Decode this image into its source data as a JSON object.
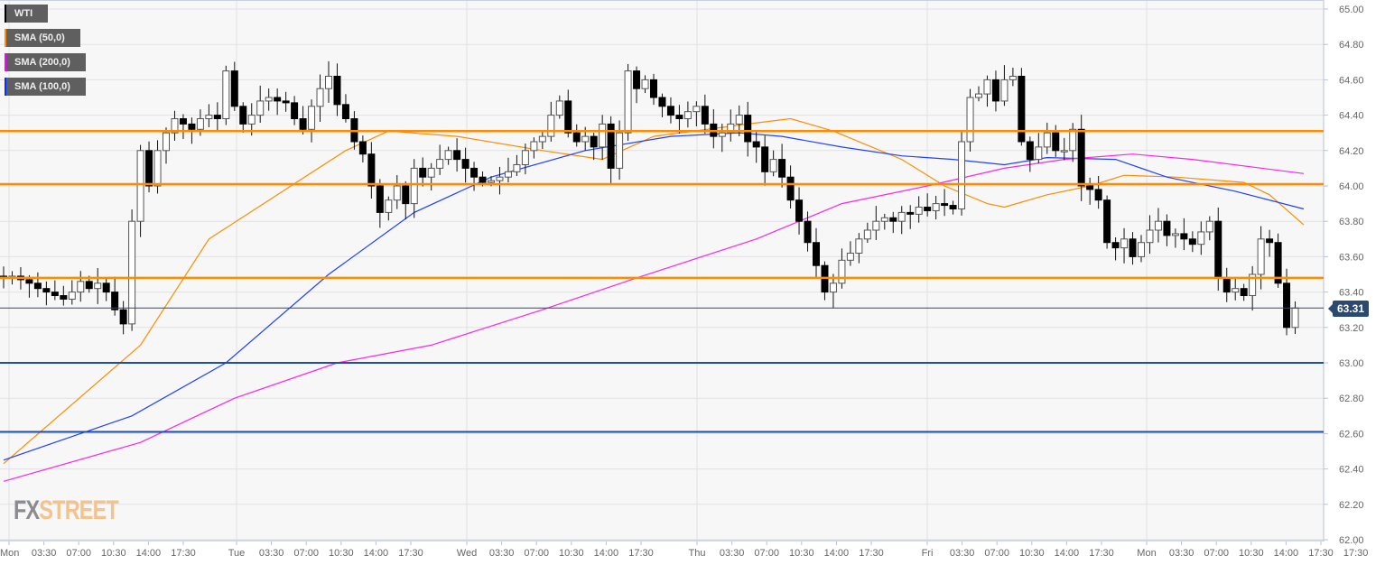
{
  "legend": [
    {
      "label": "WTI",
      "color": "#000000"
    },
    {
      "label": "SMA (50,0)",
      "color": "#ff8c00"
    },
    {
      "label": "SMA (200,0)",
      "color": "#ff00ff"
    },
    {
      "label": "SMA (100,0)",
      "color": "#0033ff"
    }
  ],
  "logo": {
    "fx": "FX",
    "street": "STREET"
  },
  "current_price_label": "63.31",
  "chart_data": {
    "type": "candlestick",
    "symbol": "WTI",
    "ylim": [
      62.0,
      65.0
    ],
    "y_ticks": [
      "65.00",
      "64.80",
      "64.60",
      "64.40",
      "64.20",
      "64.00",
      "63.80",
      "63.60",
      "63.40",
      "63.20",
      "63.00",
      "62.80",
      "62.60",
      "62.40",
      "62.20",
      "62.00"
    ],
    "x_tick_labels": [
      [
        "Mon",
        "03:30",
        "07:00",
        "10:30",
        "14:00",
        "17:30"
      ],
      [
        "Tue",
        "03:30",
        "07:00",
        "10:30",
        "14:00",
        "17:30"
      ],
      [
        "Wed",
        "03:30",
        "07:00",
        "10:30",
        "14:00",
        "17:30"
      ],
      [
        "Thu",
        "03:30",
        "07:00",
        "10:30",
        "14:00",
        "17:30"
      ],
      [
        "Fri",
        "03:30",
        "07:00",
        "10:30",
        "14:00",
        "17:30"
      ],
      [
        "Mon",
        "03:30",
        "07:00",
        "10:30",
        "14:00",
        "17:30"
      ]
    ],
    "grid": true,
    "closes": [
      63.48,
      63.49,
      63.47,
      63.45,
      63.42,
      63.4,
      63.38,
      63.36,
      63.4,
      63.46,
      63.42,
      63.45,
      63.4,
      63.3,
      63.22,
      63.8,
      64.2,
      64.0,
      64.2,
      64.3,
      64.38,
      64.35,
      64.32,
      64.38,
      64.4,
      64.38,
      64.65,
      64.45,
      64.35,
      64.4,
      64.48,
      64.5,
      64.48,
      64.47,
      64.38,
      64.32,
      64.45,
      64.55,
      64.62,
      64.46,
      64.38,
      64.25,
      64.18,
      64.0,
      63.85,
      63.92,
      64.0,
      63.9,
      64.1,
      64.05,
      64.1,
      64.15,
      64.2,
      64.15,
      64.1,
      64.05,
      64.02,
      64.03,
      64.05,
      64.08,
      64.12,
      64.2,
      64.25,
      64.28,
      64.4,
      64.48,
      64.3,
      64.25,
      64.28,
      64.22,
      64.35,
      64.1,
      64.3,
      64.65,
      64.55,
      64.6,
      64.5,
      64.45,
      64.4,
      64.38,
      64.42,
      64.45,
      64.35,
      64.28,
      64.3,
      64.35,
      64.4,
      64.25,
      64.22,
      64.08,
      64.15,
      64.05,
      63.92,
      63.8,
      63.68,
      63.55,
      63.4,
      63.45,
      63.58,
      63.62,
      63.7,
      63.75,
      63.8,
      63.82,
      63.8,
      63.85,
      63.84,
      63.88,
      63.86,
      63.9,
      63.89,
      63.87,
      64.25,
      64.5,
      64.52,
      64.6,
      64.48,
      64.6,
      64.62,
      64.25,
      64.15,
      64.22,
      64.3,
      64.2,
      64.2,
      64.32,
      64.0,
      63.98,
      63.92,
      63.68,
      63.65,
      63.7,
      63.6,
      63.68,
      63.75,
      63.8,
      63.72,
      63.73,
      63.7,
      63.67,
      63.74,
      63.8,
      63.48,
      63.4,
      63.42,
      63.38,
      63.5,
      63.7,
      63.68,
      63.45,
      63.2,
      63.31
    ],
    "series": [
      {
        "name": "SMA (50,0)",
        "color": "#ff8c00",
        "points": [
          [
            0,
            62.43
          ],
          [
            16,
            63.1
          ],
          [
            24,
            63.7
          ],
          [
            40,
            64.2
          ],
          [
            45,
            64.31
          ],
          [
            53,
            64.28
          ],
          [
            63,
            64.2
          ],
          [
            70,
            64.15
          ],
          [
            76,
            64.28
          ],
          [
            87,
            64.35
          ],
          [
            92,
            64.38
          ],
          [
            97,
            64.31
          ],
          [
            105,
            64.15
          ],
          [
            110,
            64.0
          ],
          [
            115,
            63.9
          ],
          [
            117,
            63.88
          ],
          [
            122,
            63.95
          ],
          [
            127,
            64.0
          ],
          [
            131,
            64.06
          ],
          [
            137,
            64.05
          ],
          [
            145,
            64.02
          ],
          [
            148,
            63.95
          ],
          [
            152,
            63.78
          ]
        ]
      },
      {
        "name": "SMA (100,0)",
        "color": "#2040ff",
        "points": [
          [
            0,
            62.45
          ],
          [
            15,
            62.7
          ],
          [
            26,
            63.0
          ],
          [
            38,
            63.5
          ],
          [
            48,
            63.85
          ],
          [
            57,
            64.05
          ],
          [
            68,
            64.2
          ],
          [
            78,
            64.28
          ],
          [
            86,
            64.3
          ],
          [
            91,
            64.28
          ],
          [
            98,
            64.22
          ],
          [
            105,
            64.17
          ],
          [
            111,
            64.15
          ],
          [
            117,
            64.12
          ],
          [
            122,
            64.16
          ],
          [
            130,
            64.15
          ],
          [
            136,
            64.05
          ],
          [
            144,
            63.97
          ],
          [
            152,
            63.87
          ]
        ]
      },
      {
        "name": "SMA (200,0)",
        "color": "#ff22ee",
        "points": [
          [
            0,
            62.33
          ],
          [
            16,
            62.55
          ],
          [
            27,
            62.8
          ],
          [
            39,
            63.0
          ],
          [
            50,
            63.1
          ],
          [
            63,
            63.3
          ],
          [
            74,
            63.48
          ],
          [
            88,
            63.7
          ],
          [
            98,
            63.9
          ],
          [
            108,
            64.0
          ],
          [
            117,
            64.1
          ],
          [
            124,
            64.15
          ],
          [
            132,
            64.18
          ],
          [
            139,
            64.15
          ],
          [
            152,
            64.07
          ]
        ]
      }
    ],
    "levels": [
      {
        "value": 64.31,
        "color": "#ff8c00"
      },
      {
        "value": 64.01,
        "color": "#ff8c00"
      },
      {
        "value": 63.48,
        "color": "#ff8c00"
      },
      {
        "value": 63.0,
        "color": "#1d4fa3"
      },
      {
        "value": 62.61,
        "color": "#1d4fa3"
      }
    ],
    "current_price": 63.31
  }
}
